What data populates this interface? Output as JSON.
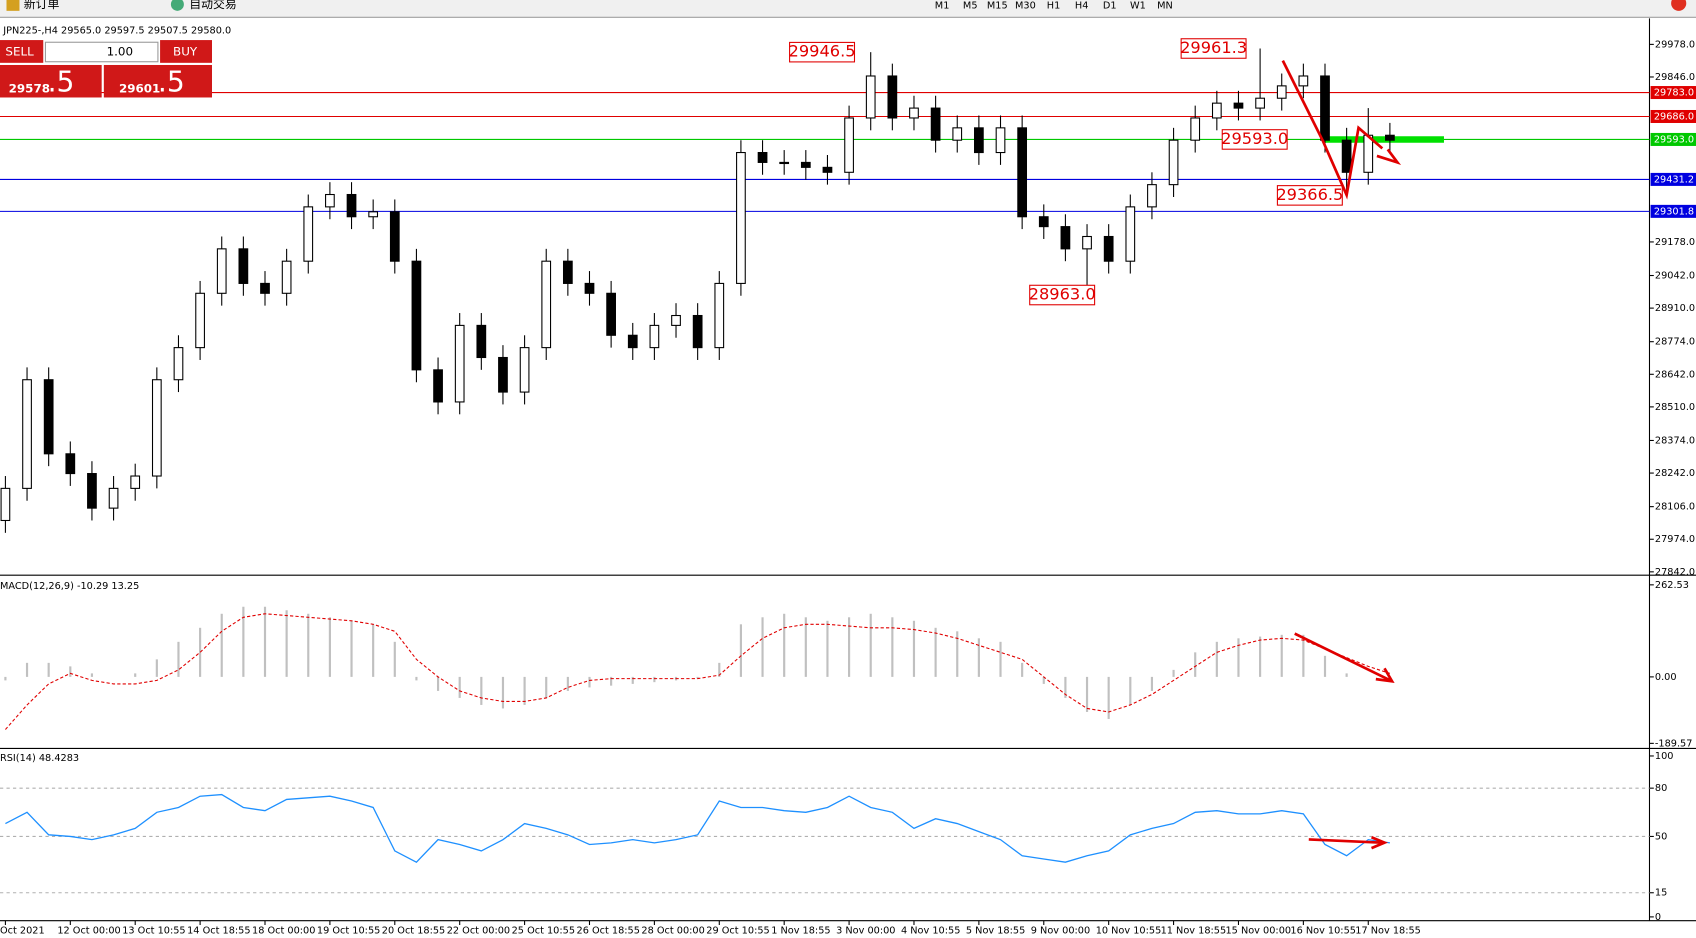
{
  "toolbar": {
    "new_order": "新订单",
    "auto_trading": "自动交易",
    "timeframes": [
      "M1",
      "M5",
      "M15",
      "M30",
      "H1",
      "H4",
      "D1",
      "W1",
      "MN"
    ]
  },
  "symbol_info": "JPN225-,H4  29565.0 29597.5 29507.5 29580.0",
  "trade_panel": {
    "sell": "SELL",
    "lots": "1.00",
    "buy": "BUY",
    "bid_big": "29578",
    "bid_pips": ".5",
    "ask_big": "29601",
    "ask_pips": ".5"
  },
  "chart_data": [
    {
      "type": "candlestick",
      "categories": [
        "Oct 2021",
        null,
        null,
        "12 Oct 00:00",
        null,
        null,
        "13 Oct 10:55",
        null,
        null,
        "14 Oct 18:55",
        null,
        null,
        "18 Oct 00:00",
        null,
        null,
        "19 Oct 10:55",
        null,
        null,
        "20 Oct 18:55",
        null,
        null,
        "22 Oct 00:00",
        null,
        null,
        "25 Oct 10:55",
        null,
        null,
        "26 Oct 18:55",
        null,
        null,
        "28 Oct 00:00",
        null,
        null,
        "29 Oct 10:55",
        null,
        null,
        "1 Nov 18:55",
        null,
        null,
        "3 Nov 00:00",
        null,
        null,
        "4 Nov 10:55",
        null,
        null,
        "5 Nov 18:55",
        null,
        null,
        "9 Nov 00:00",
        null,
        null,
        "10 Nov 10:55",
        null,
        null,
        "11 Nov 18:55",
        null,
        null,
        "15 Nov 00:00",
        null,
        null,
        "16 Nov 10:55",
        null,
        null,
        "17 Nov 18:55",
        null
      ],
      "open": [
        28050,
        28180,
        28620,
        28320,
        28240,
        28100,
        28180,
        28230,
        28620,
        28750,
        28970,
        29150,
        29010,
        28970,
        29100,
        29320,
        29370,
        29280,
        29300,
        29100,
        28660,
        28530,
        28840,
        28710,
        28570,
        28750,
        29100,
        29010,
        28970,
        28800,
        28750,
        28840,
        28880,
        28750,
        29010,
        29540,
        29500,
        29500,
        29480,
        29460,
        29680,
        29850,
        29680,
        29720,
        29590,
        29640,
        29540,
        29640,
        29280,
        29240,
        29150,
        29200,
        29100,
        29320,
        29410,
        29590,
        29680,
        29740,
        29720,
        29760,
        29810,
        29850,
        29590,
        29460,
        29610
      ],
      "high": [
        28230,
        28670,
        28670,
        28370,
        28290,
        28230,
        28280,
        28670,
        28800,
        29020,
        29200,
        29200,
        29060,
        29150,
        29370,
        29420,
        29420,
        29350,
        29350,
        29150,
        28710,
        28890,
        28890,
        28760,
        28800,
        29150,
        29150,
        29060,
        29020,
        28850,
        28890,
        28930,
        28930,
        29060,
        29590,
        29590,
        29550,
        29550,
        29530,
        29730,
        29946.5,
        29900,
        29770,
        29770,
        29690,
        29690,
        29690,
        29690,
        29330,
        29290,
        29250,
        29250,
        29370,
        29460,
        29640,
        29730,
        29790,
        29790,
        29961.3,
        29860,
        29900,
        29900,
        29640,
        29720,
        29660
      ],
      "low": [
        28000,
        28130,
        28270,
        28190,
        28050,
        28050,
        28130,
        28180,
        28570,
        28700,
        28920,
        28960,
        28920,
        28920,
        29050,
        29270,
        29230,
        29230,
        29050,
        28610,
        28480,
        28480,
        28660,
        28520,
        28520,
        28700,
        28960,
        28920,
        28750,
        28700,
        28700,
        28790,
        28700,
        28700,
        28960,
        29450,
        29450,
        29430,
        29410,
        29410,
        29630,
        29630,
        29630,
        29540,
        29540,
        29490,
        29490,
        29230,
        29190,
        29100,
        28963,
        29050,
        29050,
        29270,
        29360,
        29540,
        29630,
        29670,
        29670,
        29710,
        29760,
        29540,
        29366.5,
        29410,
        29540
      ],
      "close": [
        28180,
        28620,
        28320,
        28240,
        28100,
        28180,
        28230,
        28620,
        28750,
        28970,
        29150,
        29010,
        28970,
        29100,
        29320,
        29370,
        29280,
        29300,
        29100,
        28660,
        28530,
        28840,
        28710,
        28570,
        28750,
        29100,
        29010,
        28970,
        28800,
        28750,
        28840,
        28880,
        28750,
        29010,
        29540,
        29500,
        29500,
        29480,
        29460,
        29680,
        29850,
        29680,
        29720,
        29590,
        29640,
        29540,
        29640,
        29280,
        29240,
        29150,
        29200,
        29100,
        29320,
        29410,
        29590,
        29680,
        29740,
        29720,
        29760,
        29810,
        29850,
        29590,
        29460,
        29610,
        29590
      ],
      "ylim": [
        27833,
        30070
      ],
      "yticks": [
        {
          "value": 29978,
          "label": "29978.0"
        },
        {
          "value": 29846,
          "label": "29846.0"
        },
        {
          "value": 29178,
          "label": "29178.0"
        },
        {
          "value": 29042,
          "label": "29042.0"
        },
        {
          "value": 28910,
          "label": "28910.0"
        },
        {
          "value": 28774,
          "label": "28774.0"
        },
        {
          "value": 28642,
          "label": "28642.0"
        },
        {
          "value": 28510,
          "label": "28510.0"
        },
        {
          "value": 28374,
          "label": "28374.0"
        },
        {
          "value": 28242,
          "label": "28242.0"
        },
        {
          "value": 28106,
          "label": "28106.0"
        },
        {
          "value": 27974,
          "label": "27974.0"
        },
        {
          "value": 27842,
          "label": "27842.0"
        }
      ],
      "hlines": [
        {
          "value": 29783,
          "label": "29783.0",
          "color": "#e00000"
        },
        {
          "value": 29686,
          "label": "29686.0",
          "color": "#e00000"
        },
        {
          "value": 29593,
          "label": "29593.0",
          "color": "#00c800"
        },
        {
          "value": 29431.2,
          "label": "29431.2",
          "color": "#0000e0"
        },
        {
          "value": 29301.8,
          "label": "29301.8",
          "color": "#0000e0"
        }
      ],
      "annotations": [
        {
          "text": "29946.5",
          "value": 29946.5
        },
        {
          "text": "29961.3",
          "value": 29961.3
        },
        {
          "text": "29593.0",
          "value": 29593
        },
        {
          "text": "29366.5",
          "value": 29366.5
        },
        {
          "text": "28963.0",
          "value": 28963
        }
      ]
    },
    {
      "type": "macd",
      "title": "MACD(12,26,9) -10.29 13.25",
      "histogram": [
        -10,
        40,
        40,
        30,
        10,
        0,
        10,
        50,
        100,
        140,
        180,
        200,
        200,
        190,
        180,
        170,
        160,
        150,
        100,
        -10,
        -40,
        -60,
        -80,
        -90,
        -80,
        -60,
        -40,
        -30,
        -25,
        -20,
        -15,
        -10,
        -5,
        40,
        150,
        170,
        180,
        170,
        160,
        170,
        180,
        170,
        160,
        140,
        130,
        110,
        100,
        40,
        -20,
        -60,
        -100,
        -120,
        -80,
        -40,
        20,
        70,
        100,
        110,
        115,
        120,
        120,
        60,
        10,
        0,
        -10
      ],
      "signal": [
        -150,
        -80,
        -20,
        10,
        -10,
        -20,
        -20,
        -10,
        20,
        70,
        130,
        170,
        180,
        175,
        170,
        165,
        160,
        150,
        130,
        50,
        0,
        -40,
        -60,
        -70,
        -70,
        -60,
        -30,
        -10,
        -5,
        -5,
        -5,
        -5,
        -5,
        5,
        60,
        110,
        140,
        150,
        150,
        145,
        140,
        140,
        135,
        125,
        110,
        90,
        70,
        50,
        0,
        -50,
        -90,
        -100,
        -80,
        -50,
        -10,
        30,
        70,
        90,
        105,
        110,
        105,
        80,
        55,
        30,
        10
      ],
      "histogram_color": "#c0c0c0",
      "signal_color": "#e00000",
      "ylim": [
        -201,
        284
      ],
      "yticks": [
        262.53,
        {
          "value": 0,
          "label": "0.00"
        },
        -189.57
      ]
    },
    {
      "type": "line",
      "title": "RSI(14) 48.4283",
      "values": [
        58,
        65,
        51,
        50,
        48,
        51,
        55,
        65,
        68,
        75,
        76,
        68,
        66,
        73,
        74,
        75,
        72,
        68,
        41,
        34,
        48,
        45,
        41,
        48,
        58,
        55,
        51,
        45,
        46,
        48,
        46,
        48,
        51,
        72,
        68,
        68,
        66,
        65,
        68,
        75,
        68,
        65,
        55,
        61,
        58,
        53,
        48,
        38,
        36,
        34,
        38,
        41,
        51,
        55,
        58,
        65,
        66,
        64,
        64,
        66,
        64,
        45,
        38,
        48,
        46
      ],
      "color": "#1e90ff",
      "ylim": [
        -1,
        104
      ],
      "yticks": [
        100,
        80,
        50,
        15,
        0
      ],
      "levels": [
        80,
        50,
        15
      ]
    }
  ]
}
